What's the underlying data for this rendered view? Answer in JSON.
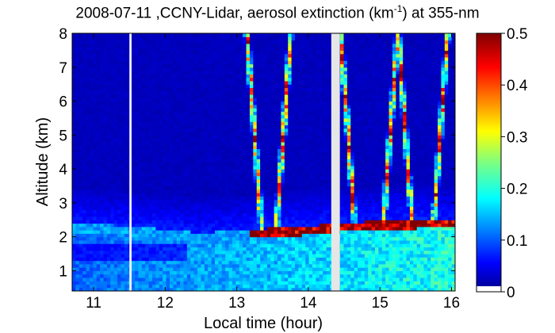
{
  "chart_data": {
    "type": "heatmap",
    "title": {
      "prefix": "2008-07-11 ,CCNY-Lidar, aerosol extinction (km",
      "superscript": "-1",
      "suffix": ") at 355-nm"
    },
    "xlabel": "Local time (hour)",
    "ylabel": "Altitude (km)",
    "xlim": [
      10.7,
      16.05
    ],
    "ylim": [
      0.4,
      8.0
    ],
    "x_ticks": [
      11,
      12,
      13,
      14,
      15,
      16
    ],
    "y_ticks": [
      1,
      2,
      3,
      4,
      5,
      6,
      7,
      8
    ],
    "colorbar": {
      "min": 0,
      "max": 0.5,
      "ticks": [
        0,
        0.1,
        0.2,
        0.3,
        0.4,
        0.5
      ],
      "tick_labels": [
        "0",
        "0.1",
        "0.2",
        "0.3",
        "0.4",
        "0.5"
      ],
      "colormap": "jet"
    },
    "data_gaps": [
      {
        "from": 11.5,
        "to": 11.53,
        "color": "#ffffff"
      },
      {
        "from": 14.32,
        "to": 14.44,
        "color": "#e6e6e6"
      }
    ],
    "boundary_layer_top_km": [
      {
        "x": 10.7,
        "y": 2.3
      },
      {
        "x": 11.5,
        "y": 2.2
      },
      {
        "x": 12.5,
        "y": 2.0
      },
      {
        "x": 13.2,
        "y": 2.1
      },
      {
        "x": 14.3,
        "y": 2.25
      },
      {
        "x": 14.45,
        "y": 2.3
      },
      {
        "x": 15.5,
        "y": 2.4
      },
      {
        "x": 16.0,
        "y": 2.4
      }
    ],
    "aerosol_plume_times": [
      13.35,
      13.55,
      14.65,
      15.05,
      15.45,
      15.75
    ],
    "value_ranges": {
      "free_troposphere": 0.03,
      "boundary_layer": 0.2,
      "boundary_layer_top_afternoon": 0.5
    }
  }
}
